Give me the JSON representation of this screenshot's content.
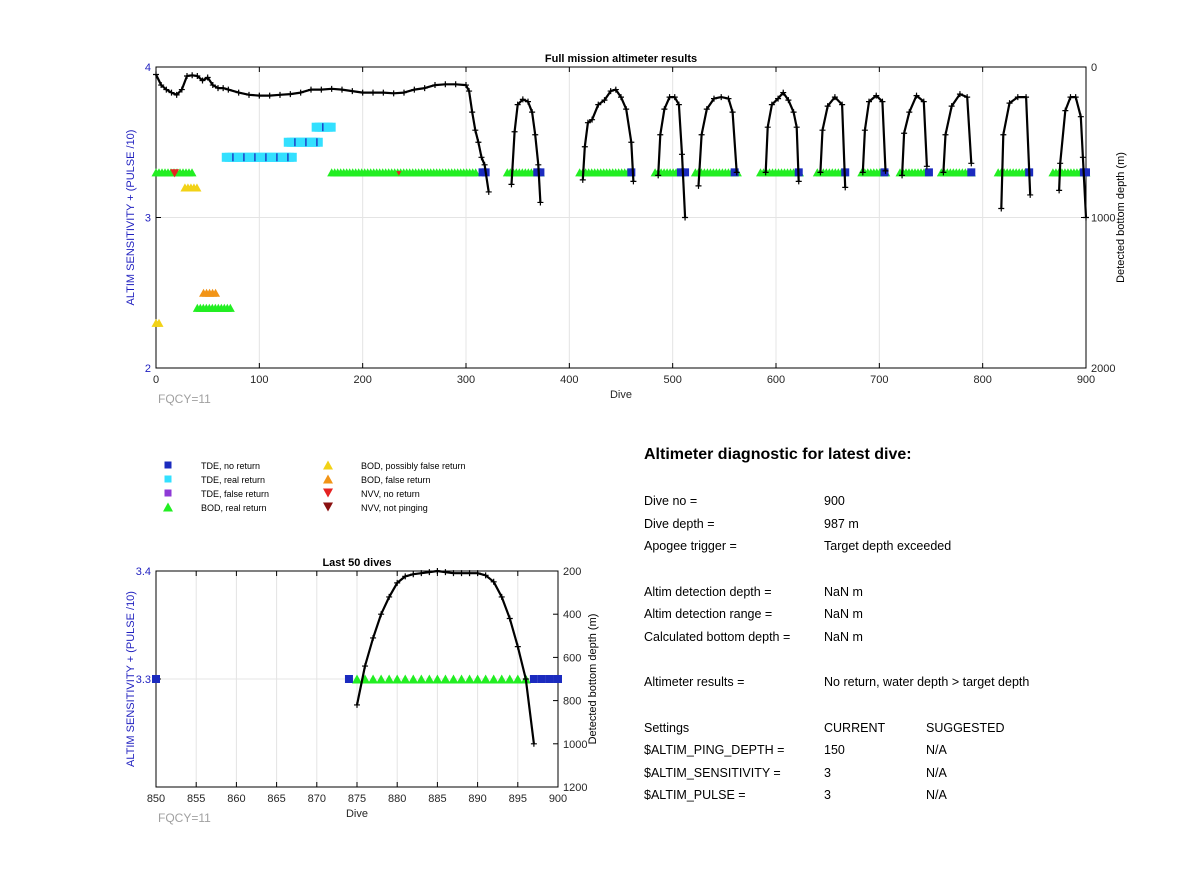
{
  "chart_data": [
    {
      "type": "scatter",
      "title": "Full mission altimeter results",
      "xlabel": "Dive",
      "ylabel_left": "ALTIM SENSITIVITY + (PULSE /10)",
      "ylabel_right": "Detected bottom depth (m)",
      "xlim": [
        0,
        900
      ],
      "ylim_left": [
        2,
        4
      ],
      "ylim_right": [
        0,
        2000
      ],
      "right_axis_reversed": true,
      "xticks": [
        "0",
        "100",
        "200",
        "300",
        "400",
        "500",
        "600",
        "700",
        "800",
        "900"
      ],
      "yticks_left": [
        "2",
        "3",
        "4"
      ],
      "yticks_right": [
        "0",
        "1000",
        "2000"
      ],
      "grid": true,
      "footnote": "FQCY=11",
      "settings_segments": [
        {
          "x_start": 0,
          "x_end": 36,
          "y": 3.3,
          "marker": "BOD, real return"
        },
        {
          "x_start": 170,
          "x_end": 312,
          "y": 3.3,
          "marker": "BOD, real return"
        },
        {
          "x_start": 340,
          "x_end": 372,
          "y": 3.3,
          "marker": "BOD, real return"
        },
        {
          "x_start": 410,
          "x_end": 462,
          "y": 3.3,
          "marker": "BOD, real return"
        },
        {
          "x_start": 483,
          "x_end": 510,
          "y": 3.3,
          "marker": "BOD, real return"
        },
        {
          "x_start": 522,
          "x_end": 565,
          "y": 3.3,
          "marker": "BOD, real return"
        },
        {
          "x_start": 585,
          "x_end": 625,
          "y": 3.3,
          "marker": "BOD, real return"
        },
        {
          "x_start": 640,
          "x_end": 668,
          "y": 3.3,
          "marker": "BOD, real return"
        },
        {
          "x_start": 683,
          "x_end": 708,
          "y": 3.3,
          "marker": "BOD, real return"
        },
        {
          "x_start": 720,
          "x_end": 748,
          "y": 3.3,
          "marker": "BOD, real return"
        },
        {
          "x_start": 760,
          "x_end": 790,
          "y": 3.3,
          "marker": "BOD, real return"
        },
        {
          "x_start": 815,
          "x_end": 845,
          "y": 3.3,
          "marker": "BOD, real return"
        },
        {
          "x_start": 868,
          "x_end": 900,
          "y": 3.3,
          "marker": "BOD, real return"
        },
        {
          "x_start": 68,
          "x_end": 132,
          "y": 3.4,
          "marker": "TDE, real return"
        },
        {
          "x_start": 128,
          "x_end": 158,
          "y": 3.5,
          "marker": "TDE, real return"
        },
        {
          "x_start": 155,
          "x_end": 170,
          "y": 3.6,
          "marker": "TDE, real return"
        },
        {
          "x_start": 28,
          "x_end": 42,
          "y": 3.2,
          "marker": "BOD, possibly false return"
        },
        {
          "x_start": 40,
          "x_end": 72,
          "y": 2.4,
          "marker": "BOD, real return"
        },
        {
          "x_start": 46,
          "x_end": 60,
          "y": 2.5,
          "marker": "BOD, false return"
        },
        {
          "x_start": 0,
          "x_end": 3,
          "y": 2.3,
          "marker": "BOD, possibly false return"
        }
      ],
      "bottom_depth_series": [
        {
          "segment": "dives 0-320",
          "x": [
            0,
            5,
            10,
            15,
            20,
            25,
            30,
            35,
            40,
            45,
            50,
            55,
            60,
            65,
            70,
            80,
            90,
            100,
            110,
            120,
            130,
            140,
            150,
            160,
            170,
            180,
            190,
            200,
            210,
            220,
            230,
            240,
            250,
            260,
            270,
            280,
            290,
            300,
            303,
            306,
            309,
            312,
            315,
            318,
            322
          ],
          "y": [
            50,
            120,
            150,
            170,
            185,
            150,
            60,
            55,
            60,
            90,
            70,
            120,
            140,
            140,
            150,
            170,
            185,
            190,
            190,
            185,
            180,
            170,
            150,
            150,
            145,
            150,
            160,
            170,
            170,
            170,
            175,
            170,
            150,
            140,
            120,
            115,
            115,
            120,
            160,
            300,
            420,
            500,
            600,
            650,
            830
          ]
        },
        {
          "segment": "dive ~350-372",
          "x": [
            344,
            347,
            350,
            355,
            360,
            364,
            367,
            370,
            372
          ],
          "y": [
            780,
            430,
            250,
            215,
            230,
            300,
            450,
            650,
            900
          ]
        },
        {
          "segment": "dive ~410-462",
          "x": [
            413,
            415,
            418,
            422,
            428,
            434,
            440,
            445,
            450,
            455,
            460,
            462
          ],
          "y": [
            750,
            530,
            370,
            350,
            250,
            220,
            160,
            150,
            200,
            280,
            500,
            760
          ]
        },
        {
          "segment": "dive ~485-510",
          "x": [
            486,
            488,
            492,
            497,
            502,
            506,
            509,
            512
          ],
          "y": [
            720,
            450,
            280,
            200,
            200,
            250,
            580,
            1000
          ]
        },
        {
          "segment": "dive ~522-565",
          "x": [
            525,
            528,
            533,
            540,
            547,
            554,
            558,
            562
          ],
          "y": [
            790,
            450,
            280,
            210,
            200,
            210,
            300,
            700
          ]
        },
        {
          "segment": "dive ~588-625",
          "x": [
            590,
            592,
            596,
            602,
            607,
            612,
            617,
            620,
            622
          ],
          "y": [
            700,
            400,
            250,
            210,
            170,
            220,
            300,
            400,
            760
          ]
        },
        {
          "segment": "dive ~640-668",
          "x": [
            643,
            645,
            650,
            657,
            664,
            667
          ],
          "y": [
            700,
            420,
            260,
            200,
            250,
            800
          ]
        },
        {
          "segment": "dive ~683-708",
          "x": [
            684,
            686,
            690,
            697,
            703,
            706
          ],
          "y": [
            700,
            420,
            230,
            190,
            230,
            690
          ]
        },
        {
          "segment": "dive ~720-748",
          "x": [
            722,
            724,
            729,
            736,
            743,
            746
          ],
          "y": [
            720,
            440,
            300,
            190,
            230,
            660
          ]
        },
        {
          "segment": "dive ~760-790",
          "x": [
            762,
            764,
            770,
            778,
            785,
            789
          ],
          "y": [
            700,
            450,
            260,
            180,
            200,
            640
          ]
        },
        {
          "segment": "dive ~815-845",
          "x": [
            818,
            820,
            826,
            834,
            842,
            846
          ],
          "y": [
            940,
            450,
            240,
            200,
            200,
            850
          ]
        },
        {
          "segment": "dive ~872-900",
          "x": [
            874,
            875,
            880,
            885,
            890,
            895,
            897,
            900
          ],
          "y": [
            820,
            640,
            290,
            200,
            200,
            330,
            600,
            1000
          ]
        }
      ],
      "no_return_points_x": [
        316,
        319,
        369,
        372,
        460,
        508,
        512,
        560,
        622,
        667,
        705,
        748,
        789,
        845,
        898,
        900
      ]
    },
    {
      "type": "scatter",
      "title": "Last 50 dives",
      "xlabel": "Dive",
      "ylabel_left": "ALTIM SENSITIVITY + (PULSE /10)",
      "ylabel_right": "Detected bottom depth (m)",
      "xlim": [
        850,
        900
      ],
      "ylim_left": [
        3.2,
        3.4
      ],
      "ylim_right": [
        200,
        1200
      ],
      "right_axis_reversed": true,
      "xticks": [
        "850",
        "855",
        "860",
        "865",
        "870",
        "875",
        "880",
        "885",
        "890",
        "895",
        "900"
      ],
      "yticks_left": [
        "3.3",
        "3.4"
      ],
      "yticks_right": [
        "200",
        "400",
        "600",
        "800",
        "1000",
        "1200"
      ],
      "grid": true,
      "footnote": "FQCY=11",
      "tde_no_return_x": [
        850,
        874,
        897,
        898,
        899,
        900
      ],
      "bod_real_return_x": [
        875,
        876,
        877,
        878,
        879,
        880,
        881,
        882,
        883,
        884,
        885,
        886,
        887,
        888,
        889,
        890,
        891,
        892,
        893,
        894,
        895,
        896
      ],
      "settings_y": 3.3,
      "bottom_depth": {
        "x": [
          875,
          876,
          877,
          878,
          879,
          880,
          881,
          882,
          883,
          884,
          885,
          886,
          887,
          888,
          889,
          890,
          891,
          892,
          893,
          894,
          895,
          896,
          897
        ],
        "y": [
          820,
          640,
          510,
          400,
          320,
          255,
          225,
          215,
          210,
          205,
          200,
          205,
          210,
          210,
          210,
          210,
          220,
          250,
          320,
          420,
          550,
          700,
          1000
        ]
      }
    }
  ],
  "legend": {
    "items": [
      {
        "label": "TDE, no return",
        "marker": "square",
        "color": "#1b2bbf"
      },
      {
        "label": "TDE, real return",
        "marker": "square",
        "color": "#33e0ff"
      },
      {
        "label": "TDE, false return",
        "marker": "square",
        "color": "#8e3ad6"
      },
      {
        "label": "BOD, real return",
        "marker": "triangle-up",
        "color": "#22ee22"
      },
      {
        "label": "BOD, possibly false return",
        "marker": "triangle-up",
        "color": "#f2d216"
      },
      {
        "label": "BOD, false return",
        "marker": "triangle-up",
        "color": "#f29416"
      },
      {
        "label": "NVV, no return",
        "marker": "triangle-down",
        "color": "#e52222"
      },
      {
        "label": "NVV, not pinging",
        "marker": "triangle-down",
        "color": "#8a1010"
      }
    ]
  },
  "diagnostic": {
    "title": "Altimeter diagnostic for latest dive:",
    "dive_no_label": "Dive no =",
    "dive_no": "900",
    "dive_depth_label": "Dive depth =",
    "dive_depth": "987 m",
    "apogee_label": "Apogee trigger =",
    "apogee": "Target depth exceeded",
    "altim_depth_label": "Altim detection depth =",
    "altim_depth": "NaN m",
    "altim_range_label": "Altim detection range =",
    "altim_range": "NaN m",
    "calc_bottom_label": "Calculated bottom depth =",
    "calc_bottom": "NaN m",
    "results_label": "Altimeter results =",
    "results": "No return, water depth > target depth",
    "settings_header": "Settings",
    "current_header": "CURRENT",
    "suggested_header": "SUGGESTED",
    "ping_depth_label": "$ALTIM_PING_DEPTH =",
    "ping_depth_current": "150",
    "ping_depth_suggested": "N/A",
    "sensitivity_label": "$ALTIM_SENSITIVITY =",
    "sensitivity_current": "3",
    "sensitivity_suggested": "N/A",
    "pulse_label": "$ALTIM_PULSE =",
    "pulse_current": "3",
    "pulse_suggested": "N/A"
  },
  "colors": {
    "axis_blue": "#1f1fbf",
    "grid": "#e4e4e4",
    "footnote_gray": "#a0a0a0",
    "depth_line": "#000000"
  }
}
